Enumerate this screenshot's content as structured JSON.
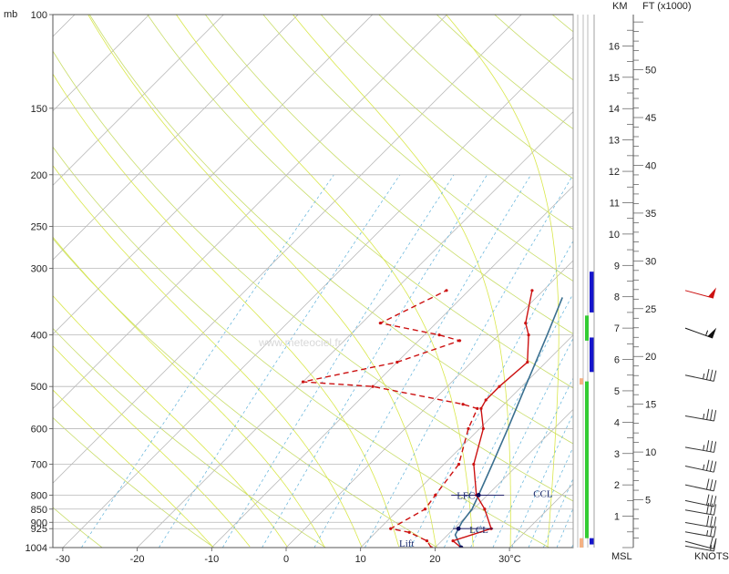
{
  "chart_data": {
    "type": "skew-t log-p",
    "pressure_unit_label": "mb",
    "pressure_ticks": [
      100,
      150,
      200,
      250,
      300,
      400,
      500,
      600,
      700,
      800,
      850,
      900,
      925,
      1004
    ],
    "temperature_ticks": [
      {
        "value": -30,
        "label": "-30"
      },
      {
        "value": -20,
        "label": "-20"
      },
      {
        "value": -10,
        "label": "-10"
      },
      {
        "value": 0,
        "label": "0"
      },
      {
        "value": 10,
        "label": "10"
      },
      {
        "value": 20,
        "label": "20"
      },
      {
        "value": 30,
        "label": "30°C"
      }
    ],
    "temperature_profile": [
      {
        "p": 1004,
        "t": 23.5
      },
      {
        "p": 975,
        "t": 21.5
      },
      {
        "p": 925,
        "t": 25
      },
      {
        "p": 850,
        "t": 21.5
      },
      {
        "p": 800,
        "t": 18.5
      },
      {
        "p": 700,
        "t": 14
      },
      {
        "p": 600,
        "t": 10.5
      },
      {
        "p": 550,
        "t": 7.5
      },
      {
        "p": 530,
        "t": 7
      },
      {
        "p": 500,
        "t": 7
      },
      {
        "p": 450,
        "t": 7.5
      },
      {
        "p": 400,
        "t": 4
      },
      {
        "p": 380,
        "t": 2
      },
      {
        "p": 330,
        "t": -1.5
      }
    ],
    "dewpoint_profile": [
      {
        "p": 1004,
        "t": 19.5
      },
      {
        "p": 975,
        "t": 18
      },
      {
        "p": 940,
        "t": 14.5
      },
      {
        "p": 925,
        "t": 11.5
      },
      {
        "p": 850,
        "t": 13.5
      },
      {
        "p": 800,
        "t": 13
      },
      {
        "p": 700,
        "t": 12
      },
      {
        "p": 600,
        "t": 8.5
      },
      {
        "p": 550,
        "t": 7
      },
      {
        "p": 540,
        "t": 4.5
      },
      {
        "p": 500,
        "t": -10
      },
      {
        "p": 490,
        "t": -20
      },
      {
        "p": 450,
        "t": -10
      },
      {
        "p": 410,
        "t": -4.5
      },
      {
        "p": 400,
        "t": -8
      },
      {
        "p": 380,
        "t": -17.5
      },
      {
        "p": 330,
        "t": -13
      }
    ],
    "parcel_profile": [
      {
        "p": 1004,
        "t": 23.5
      },
      {
        "p": 950,
        "t": 21
      },
      {
        "p": 900,
        "t": 20.2
      },
      {
        "p": 850,
        "t": 19.8
      },
      {
        "p": 800,
        "t": 18.8
      },
      {
        "p": 700,
        "t": 16.5
      },
      {
        "p": 600,
        "t": 13.8
      },
      {
        "p": 500,
        "t": 10.5
      },
      {
        "p": 400,
        "t": 6.5
      },
      {
        "p": 340,
        "t": 3.5
      }
    ],
    "levels": [
      {
        "label": "LFC",
        "p": 800
      },
      {
        "label": "CCL",
        "p": 800
      },
      {
        "label": "LCL",
        "p": 925
      },
      {
        "label": "Lift",
        "p": 1004
      }
    ],
    "km_axis": {
      "title": "KM",
      "surface_label": "MSL",
      "ticks": [
        1,
        2,
        3,
        4,
        5,
        6,
        7,
        8,
        9,
        10,
        11,
        12,
        13,
        14,
        15,
        16
      ]
    },
    "ft_axis": {
      "title": "FT (x1000)",
      "ticks": [
        5,
        10,
        15,
        20,
        25,
        30,
        35,
        40,
        45,
        50
      ]
    },
    "wind_units_label": "KNOTS",
    "wind_barbs": [
      {
        "km": 0.05,
        "dir": 280,
        "speed": 15
      },
      {
        "km": 0.2,
        "dir": 285,
        "speed": 20
      },
      {
        "km": 0.5,
        "dir": 280,
        "speed": 25
      },
      {
        "km": 0.8,
        "dir": 280,
        "speed": 30
      },
      {
        "km": 1.2,
        "dir": 280,
        "speed": 30
      },
      {
        "km": 1.5,
        "dir": 282,
        "speed": 30
      },
      {
        "km": 2.0,
        "dir": 282,
        "speed": 30
      },
      {
        "km": 2.6,
        "dir": 282,
        "speed": 35
      },
      {
        "km": 3.2,
        "dir": 280,
        "speed": 35
      },
      {
        "km": 4.2,
        "dir": 280,
        "speed": 35
      },
      {
        "km": 5.5,
        "dir": 282,
        "speed": 35
      },
      {
        "km": 7.0,
        "dir": 290,
        "speed": 55
      },
      {
        "km": 8.2,
        "dir": 285,
        "speed": 50
      }
    ],
    "stability_bars": [
      {
        "from_km": 0.0,
        "to_km": 0.3,
        "color": "#f4b183"
      },
      {
        "from_km": 5.2,
        "to_km": 5.4,
        "color": "#f4b183"
      },
      {
        "from_km": 0.3,
        "to_km": 5.3,
        "color": "#33cc33"
      },
      {
        "from_km": 6.6,
        "to_km": 7.4,
        "color": "#33cc33"
      },
      {
        "from_km": 0.1,
        "to_km": 0.3,
        "color": "#1515cc"
      },
      {
        "from_km": 5.6,
        "to_km": 6.7,
        "color": "#1515cc"
      },
      {
        "from_km": 7.5,
        "to_km": 8.8,
        "color": "#1515cc"
      }
    ],
    "watermark": "www.meteociel.fr",
    "colors": {
      "temperature": "#cc1111",
      "dewpoint": "#cc1111",
      "parcel": "#3a6f8f",
      "isobar": "#b8b8b8",
      "isotherm": "#b0b0b0",
      "dry_adiabat": "#c9dd6a",
      "moist_adiabat": "#d9e74a",
      "mixing_ratio": "#5bb0d9",
      "level_marker": "#0a0a5a"
    }
  }
}
